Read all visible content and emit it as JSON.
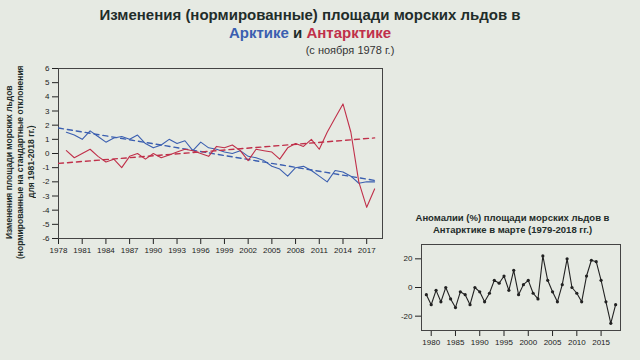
{
  "chart_data": [
    {
      "type": "line",
      "title": "Изменения (нормированные) площади морских льдов в Арктике и Антарктике",
      "subtitle": "(с ноября 1978 г.)",
      "y_label": "Изменения площади морских льдов (нормированные на стандартные отклонения для 1981-2018 гг.)",
      "x": [
        1979,
        1980,
        1981,
        1982,
        1983,
        1984,
        1985,
        1986,
        1987,
        1988,
        1989,
        1990,
        1991,
        1992,
        1993,
        1994,
        1995,
        1996,
        1997,
        1998,
        1999,
        2000,
        2001,
        2002,
        2003,
        2004,
        2005,
        2006,
        2007,
        2008,
        2009,
        2010,
        2011,
        2012,
        2013,
        2014,
        2015,
        2016,
        2017,
        2018
      ],
      "series": [
        {
          "name": "Арктике",
          "color": "#3b5fb0",
          "values": [
            1.5,
            1.3,
            1.0,
            1.6,
            1.2,
            0.8,
            1.1,
            1.2,
            1.0,
            1.3,
            0.7,
            0.4,
            0.6,
            1.0,
            0.7,
            0.9,
            0.2,
            0.8,
            0.4,
            0.3,
            0.1,
            0.0,
            0.2,
            -0.2,
            -0.3,
            -0.5,
            -0.9,
            -1.1,
            -1.6,
            -1.0,
            -0.9,
            -1.2,
            -1.6,
            -2.0,
            -1.2,
            -1.3,
            -1.6,
            -2.1,
            -2.0,
            -2.0
          ],
          "trend": {
            "x": [
              1978,
              2018
            ],
            "values": [
              1.8,
              -1.9
            ]
          }
        },
        {
          "name": "Антарктике",
          "color": "#c0304a",
          "values": [
            0.2,
            -0.3,
            0.0,
            0.3,
            -0.2,
            -0.6,
            -0.4,
            -1.0,
            -0.2,
            0.0,
            -0.4,
            0.0,
            -0.3,
            -0.1,
            0.1,
            0.3,
            0.2,
            0.0,
            -0.2,
            0.5,
            0.4,
            0.6,
            0.2,
            -0.5,
            0.3,
            0.2,
            0.1,
            -0.4,
            0.4,
            0.7,
            0.5,
            1.0,
            0.3,
            1.5,
            2.5,
            3.5,
            1.5,
            -2.0,
            -3.8,
            -2.5
          ],
          "trend": {
            "x": [
              1978,
              2018
            ],
            "values": [
              -0.7,
              1.1
            ]
          }
        }
      ],
      "xlim": [
        1978,
        2019
      ],
      "xticks": [
        1978,
        1981,
        1984,
        1987,
        1990,
        1993,
        1996,
        1999,
        2002,
        2005,
        2008,
        2011,
        2014,
        2017
      ],
      "ylim": [
        -6,
        6
      ],
      "yticks": [
        -6,
        -5,
        -4,
        -3,
        -2,
        -1,
        0,
        1,
        2,
        3,
        4,
        5,
        6
      ],
      "grid": false
    },
    {
      "type": "line",
      "title": "Аномалии (%) площади морских льдов в Антарктике в марте (1979-2018 гг.)",
      "x": [
        1979,
        1980,
        1981,
        1982,
        1983,
        1984,
        1985,
        1986,
        1987,
        1988,
        1989,
        1990,
        1991,
        1992,
        1993,
        1994,
        1995,
        1996,
        1997,
        1998,
        1999,
        2000,
        2001,
        2002,
        2003,
        2004,
        2005,
        2006,
        2007,
        2008,
        2009,
        2010,
        2011,
        2012,
        2013,
        2014,
        2015,
        2016,
        2017,
        2018
      ],
      "series": [
        {
          "name": "Антарктике",
          "color": "#222222",
          "marker": "circle",
          "values": [
            -5,
            -12,
            -2,
            -10,
            0,
            -8,
            -14,
            -3,
            -5,
            -12,
            0,
            -3,
            -10,
            -4,
            5,
            3,
            8,
            -2,
            12,
            -5,
            2,
            5,
            -4,
            -8,
            22,
            5,
            -3,
            -10,
            2,
            20,
            0,
            -4,
            -10,
            8,
            19,
            18,
            5,
            -10,
            -25,
            -12
          ]
        }
      ],
      "xlim": [
        1978,
        2019
      ],
      "xticks": [
        1980,
        1985,
        1990,
        1995,
        2000,
        2005,
        2010,
        2015
      ],
      "ylim": [
        -30,
        30
      ],
      "yticks": [
        -20,
        0,
        20
      ],
      "grid": false
    }
  ]
}
